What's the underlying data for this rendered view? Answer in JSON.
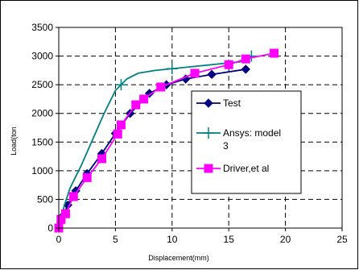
{
  "chart_data": {
    "type": "line",
    "title": "",
    "xlabel": "Displacement(mm)",
    "ylabel": "Load(ton",
    "xlim": [
      0,
      25
    ],
    "ylim": [
      0,
      3500
    ],
    "x_ticks": [
      "0",
      "5",
      "10",
      "15",
      "20",
      "25"
    ],
    "y_ticks": [
      "0",
      "500",
      "1000",
      "1500",
      "2000",
      "2500",
      "3000",
      "3500"
    ],
    "grid": "dashed",
    "legend_position": "right",
    "series": [
      {
        "name": "Test",
        "color": "#000080",
        "marker": "diamond",
        "x": [
          0,
          0.3,
          0.8,
          1.5,
          2.5,
          3.8,
          5.0,
          6.3,
          8.0,
          9.5,
          11.2,
          13.5,
          16.5
        ],
        "y": [
          0,
          200,
          400,
          650,
          950,
          1300,
          1650,
          2000,
          2350,
          2500,
          2600,
          2680,
          2770
        ]
      },
      {
        "name": "Ansys: model 3",
        "color": "#008080",
        "marker": "plus",
        "x": [
          0,
          0.5,
          1.0,
          2.0,
          3.0,
          4.0,
          5.0,
          5.5,
          6.0,
          7.0,
          8.5,
          10.0,
          12.0,
          14.0,
          16.0,
          17.0
        ],
        "y": [
          0,
          400,
          700,
          1100,
          1550,
          2000,
          2400,
          2500,
          2600,
          2700,
          2750,
          2780,
          2820,
          2860,
          2900,
          3000
        ]
      },
      {
        "name": "Driver,et al",
        "color": "#ff00ff",
        "marker": "square",
        "x": [
          0,
          0.2,
          0.6,
          1.3,
          2.5,
          3.8,
          5.2,
          5.5,
          6.8,
          7.5,
          9.0,
          12.0,
          15.0,
          16.5,
          19.0
        ],
        "y": [
          0,
          150,
          250,
          550,
          880,
          1210,
          1640,
          1800,
          2150,
          2250,
          2460,
          2700,
          2850,
          2950,
          3050
        ]
      }
    ]
  }
}
